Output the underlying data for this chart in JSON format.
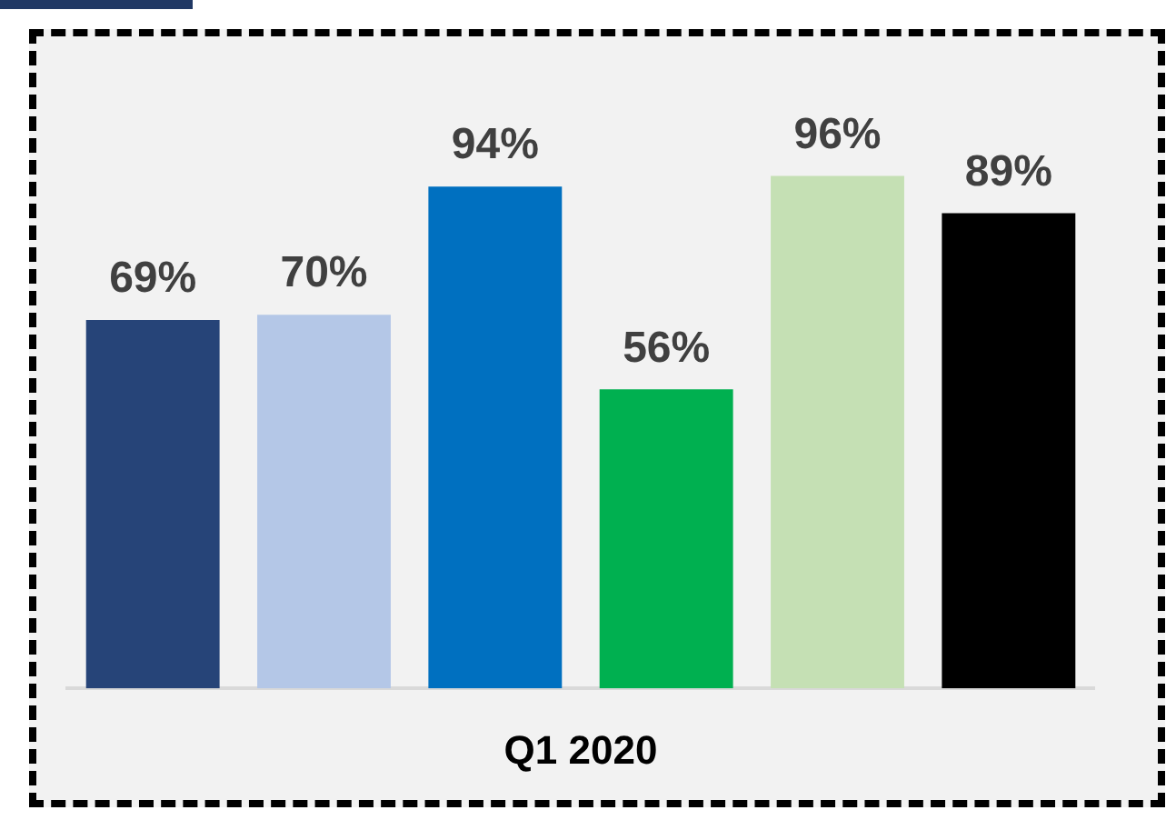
{
  "chart_data": {
    "type": "bar",
    "categories": [
      null,
      null,
      null,
      null,
      null,
      null
    ],
    "xlabel": "Q1 2020",
    "legend": false,
    "grid": false,
    "values": [
      69,
      70,
      94,
      56,
      96,
      89
    ],
    "colors": [
      "#264478",
      "#b4c7e7",
      "#0070c0",
      "#00b050",
      "#c5e0b4",
      "#000000"
    ],
    "value_labels": [
      "69%",
      "70%",
      "94%",
      "56%",
      "96%",
      "89%"
    ]
  }
}
